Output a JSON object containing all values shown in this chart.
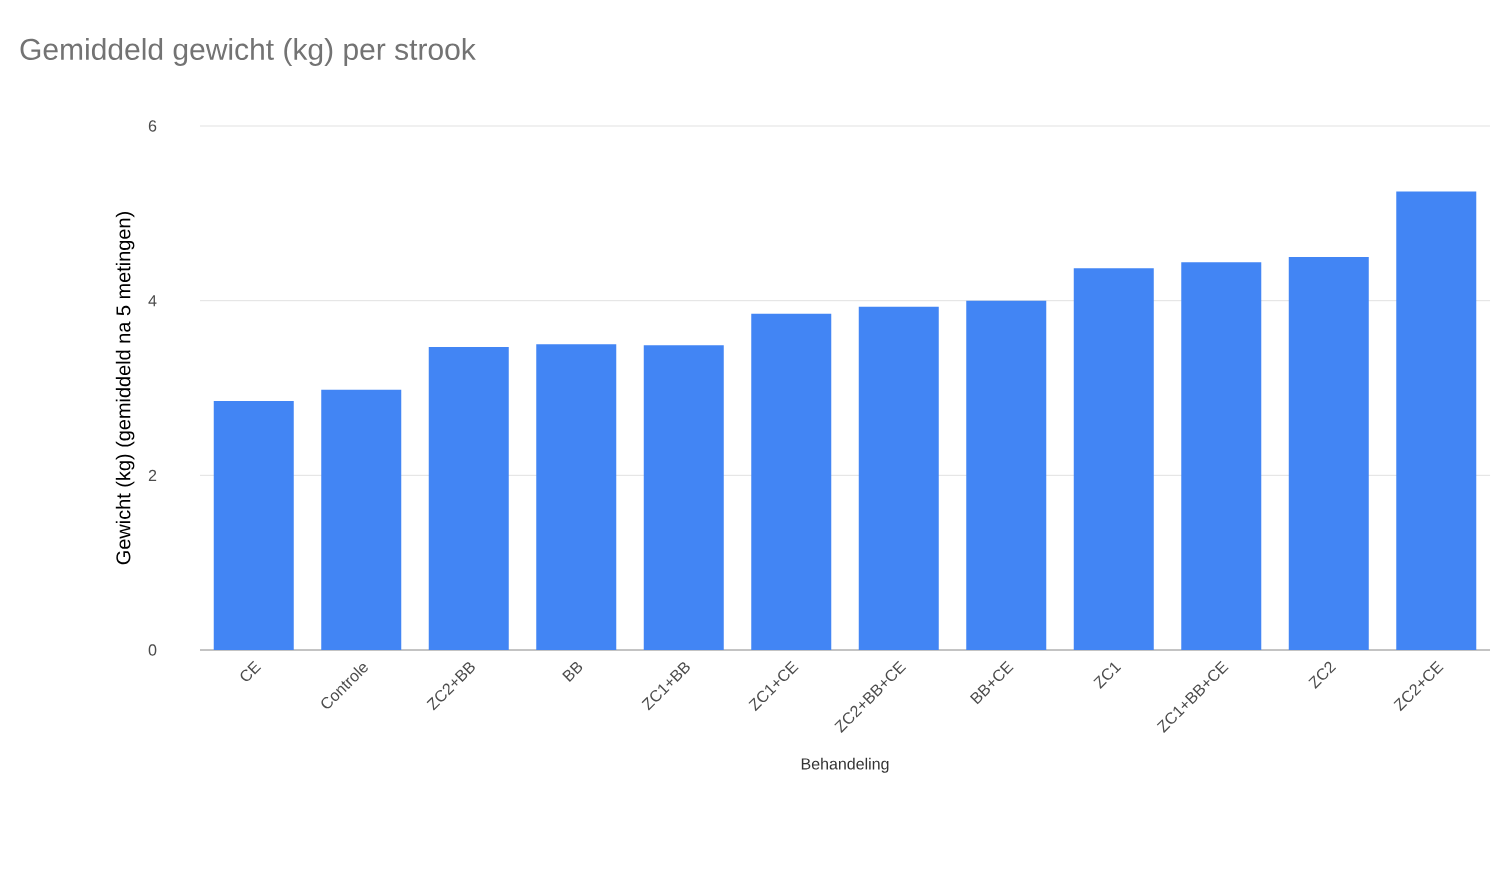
{
  "chart_data": {
    "type": "bar",
    "title": "Gemiddeld gewicht (kg) per strook",
    "xlabel": "Behandeling",
    "ylabel": "Gewicht (kg) (gemiddeld na 5 metingen)",
    "categories": [
      "CE",
      "Controle",
      "ZC2+BB",
      "BB",
      "ZC1+BB",
      "ZC1+CE",
      "ZC2+BB+CE",
      "BB+CE",
      "ZC1",
      "ZC1+BB+CE",
      "ZC2",
      "ZC2+CE"
    ],
    "values": [
      2.85,
      2.98,
      3.47,
      3.5,
      3.49,
      3.85,
      3.93,
      4.0,
      4.37,
      4.44,
      4.5,
      5.25
    ],
    "color": "#4285f4",
    "ylim": [
      0,
      6
    ],
    "yticks": [
      0,
      2,
      4,
      6
    ],
    "grid": "y"
  }
}
